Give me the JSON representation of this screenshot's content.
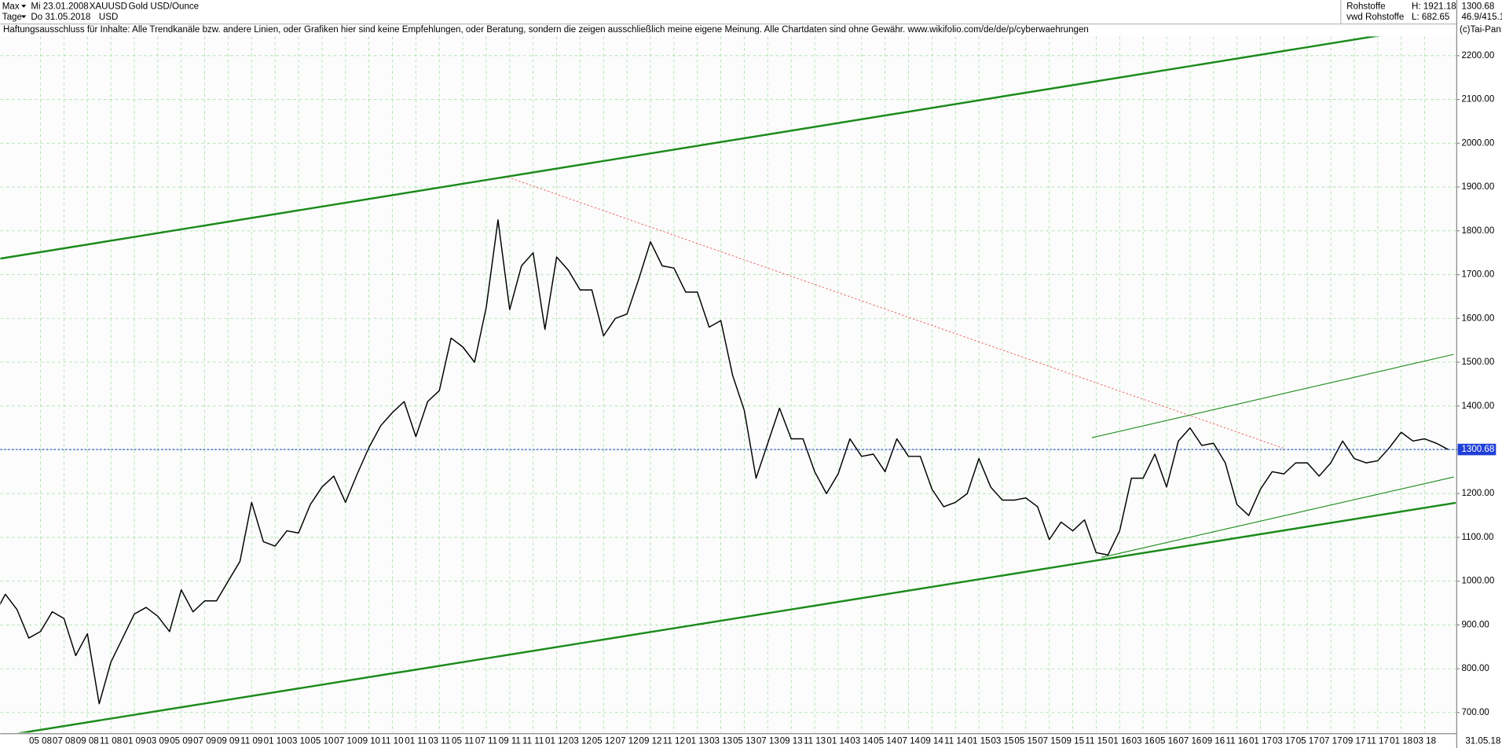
{
  "chart_data": {
    "type": "line",
    "range": "Max",
    "period": "Tage",
    "start_date": "Mi 23.01.2008",
    "end_date": "Do 31.05.2018",
    "symbol": "XAUUSD",
    "currency": "USD",
    "title": "Gold USD/Ounce",
    "group": "Rohstoffe",
    "source": "vwd Rohstoffe",
    "high": "H: 1921.18",
    "low": "L: 682.65",
    "ratio": "46.9/415.1",
    "disclaimer": "Haftungsausschluss für Inhalte: Alle Trendkanäle bzw. andere Linien, oder Grafiken hier sind keine Empfehlungen, oder Beratung, sondern die zeigen ausschließlich meine eigene Meinung. Alle Chartdaten sind ohne Gewähr.  www.wikifolio.com/de/de/p/cyberwaehrungen",
    "copyright": "(c)Tai-Pan",
    "end_label": "31.05.18",
    "current": {
      "value": 1300.68,
      "label": "1300.68"
    },
    "color": "#000000",
    "grid": true,
    "categories": [
      null,
      null,
      null,
      null,
      "05 08",
      null,
      "07 08",
      null,
      "09 08",
      null,
      "11 08",
      null,
      "01 09",
      null,
      "03 09",
      null,
      "05 09",
      null,
      "07 09",
      null,
      "09 09",
      null,
      "11 09",
      null,
      "01 10",
      null,
      "03 10",
      null,
      "05 10",
      null,
      "07 10",
      null,
      "09 10",
      null,
      "11 10",
      null,
      "01 11",
      null,
      "03 11",
      null,
      "05 11",
      null,
      "07 11",
      null,
      "09 11",
      null,
      "11 11",
      null,
      "01 12",
      null,
      "03 12",
      null,
      "05 12",
      null,
      "07 12",
      null,
      "09 12",
      null,
      "11 12",
      null,
      "01 13",
      null,
      "03 13",
      null,
      "05 13",
      null,
      "07 13",
      null,
      "09 13",
      null,
      "11 13",
      null,
      "01 14",
      null,
      "03 14",
      null,
      "05 14",
      null,
      "07 14",
      null,
      "09 14",
      null,
      "11 14",
      null,
      "01 15",
      null,
      "03 15",
      null,
      "05 15",
      null,
      "07 15",
      null,
      "09 15",
      null,
      "11 15",
      null,
      "01 16",
      null,
      "03 16",
      null,
      "05 16",
      null,
      "07 16",
      null,
      "09 16",
      null,
      "11 16",
      null,
      "01 17",
      null,
      "03 17",
      null,
      "05 17",
      null,
      "07 17",
      null,
      "09 17",
      null,
      "11 17",
      null,
      "01 18",
      null,
      "03 18",
      null,
      null
    ],
    "values": [
      920,
      970,
      935,
      870,
      885,
      930,
      915,
      830,
      880,
      720,
      815,
      870,
      925,
      940,
      920,
      885,
      980,
      930,
      955,
      955,
      1000,
      1045,
      1180,
      1090,
      1080,
      1115,
      1110,
      1175,
      1215,
      1240,
      1180,
      1245,
      1305,
      1355,
      1385,
      1410,
      1330,
      1410,
      1435,
      1555,
      1535,
      1500,
      1625,
      1825,
      1620,
      1720,
      1750,
      1575,
      1740,
      1710,
      1665,
      1665,
      1560,
      1600,
      1610,
      1690,
      1775,
      1720,
      1715,
      1660,
      1660,
      1580,
      1595,
      1470,
      1390,
      1235,
      1315,
      1395,
      1325,
      1325,
      1250,
      1200,
      1245,
      1325,
      1285,
      1290,
      1250,
      1325,
      1285,
      1285,
      1210,
      1170,
      1180,
      1200,
      1280,
      1215,
      1185,
      1185,
      1190,
      1170,
      1095,
      1135,
      1115,
      1140,
      1065,
      1060,
      1115,
      1235,
      1235,
      1290,
      1215,
      1320,
      1350,
      1310,
      1315,
      1270,
      1175,
      1150,
      1210,
      1250,
      1245,
      1270,
      1270,
      1240,
      1270,
      1320,
      1280,
      1270,
      1275,
      1305,
      1340,
      1320,
      1325,
      1315,
      1300.68
    ],
    "ylim": [
      654,
      2244
    ],
    "yticks": [
      {
        "value": 700,
        "label": "700.00"
      },
      {
        "value": 800,
        "label": "800.00"
      },
      {
        "value": 900,
        "label": "900.00"
      },
      {
        "value": 1000,
        "label": "1000.00"
      },
      {
        "value": 1100,
        "label": "1100.00"
      },
      {
        "value": 1200,
        "label": "1200.00"
      },
      {
        "value": 1300,
        "label": "1300.00"
      },
      {
        "value": 1400,
        "label": "1400.00"
      },
      {
        "value": 1500,
        "label": "1500.00"
      },
      {
        "value": 1600,
        "label": "1600.00"
      },
      {
        "value": 1700,
        "label": "1700.00"
      },
      {
        "value": 1800,
        "label": "1800.00"
      },
      {
        "value": 1900,
        "label": "1900.00"
      },
      {
        "value": 2000,
        "label": "2000.00"
      },
      {
        "value": 2100,
        "label": "2100.00"
      },
      {
        "value": 2200,
        "label": "2200.00"
      }
    ]
  }
}
